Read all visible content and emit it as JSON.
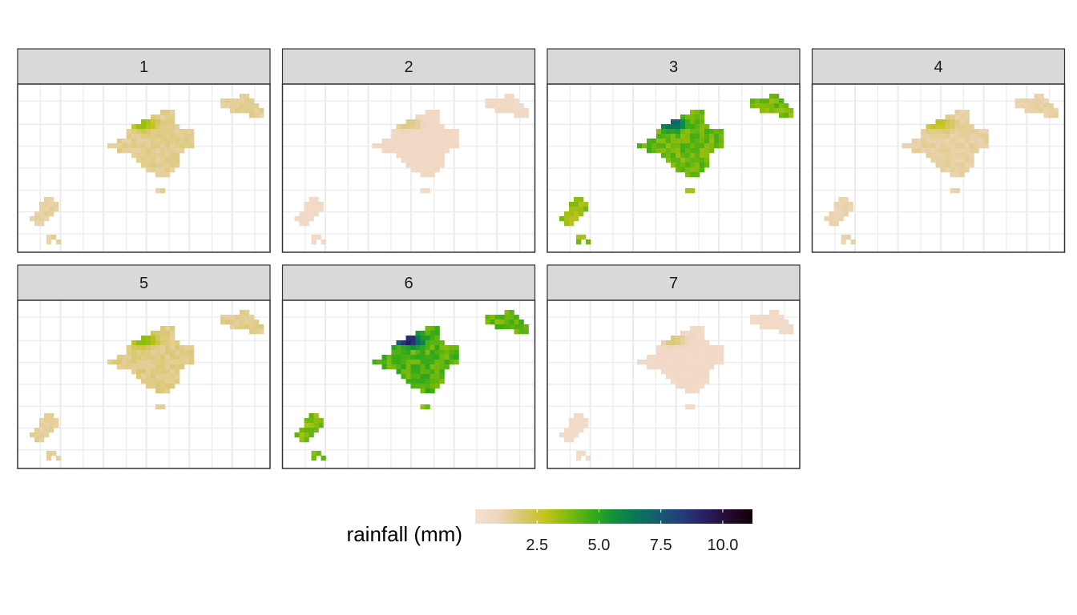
{
  "chart_data": {
    "type": "heatmap",
    "title": "",
    "panel_labels": [
      "1",
      "2",
      "3",
      "4",
      "5",
      "6",
      "7"
    ],
    "panel_mean_rainfall_mm": [
      1.5,
      0.7,
      4.0,
      1.3,
      1.6,
      4.3,
      0.6
    ],
    "panel_peak_rainfall_mm": [
      4.2,
      2.1,
      8.6,
      3.4,
      4.5,
      11.0,
      2.3
    ],
    "islands": [
      "Mallorca",
      "Menorca",
      "Ibiza",
      "Formentera",
      "Cabrera"
    ],
    "legend": {
      "title": "rainfall (mm)",
      "ticks": [
        2.5,
        5.0,
        7.5,
        10.0
      ],
      "tick_labels": [
        "2.5",
        "5.0",
        "7.5",
        "10.0"
      ],
      "range": [
        0,
        11.2
      ],
      "palette": [
        "#f5e0d3",
        "#efd6c0",
        "#d9c870",
        "#c4c41d",
        "#82bb0c",
        "#3aac16",
        "#10933a",
        "#0a7659",
        "#155a73",
        "#243a7c",
        "#2b1c62",
        "#220b2c",
        "#120008"
      ]
    },
    "grid": true,
    "colors": {
      "strip_fill": "#d9d9d9",
      "strip_border": "#333333",
      "panel_border": "#333333",
      "grid_line": "#ebebeb"
    }
  }
}
